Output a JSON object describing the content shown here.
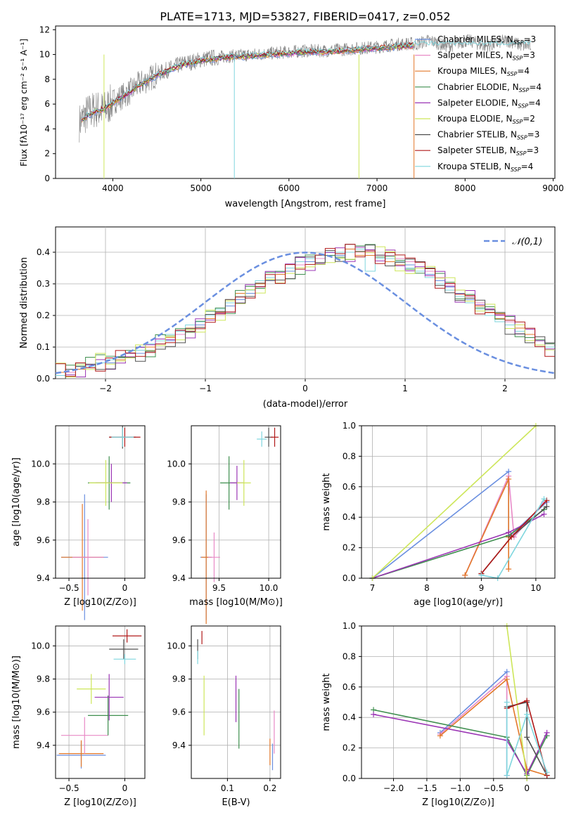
{
  "figure": {
    "title": "PLATE=1713, MJD=53827, FIBERID=0417, z=0.052"
  },
  "legend_entries": [
    {
      "label": "Chabrier MILES, N",
      "sub": "SSP",
      "tail": "=3",
      "color": "#6a8fe0"
    },
    {
      "label": "Salpeter MILES, N",
      "sub": "SSP",
      "tail": "=3",
      "color": "#e88ac6"
    },
    {
      "label": "Kroupa MILES, N",
      "sub": "SSP",
      "tail": "=4",
      "color": "#e3782a"
    },
    {
      "label": "Chabrier ELODIE, N",
      "sub": "SSP",
      "tail": "=4",
      "color": "#3f8f4f"
    },
    {
      "label": "Salpeter ELODIE, N",
      "sub": "SSP",
      "tail": "=4",
      "color": "#9b35b5"
    },
    {
      "label": "Kroupa ELODIE, N",
      "sub": "SSP",
      "tail": "=2",
      "color": "#cde65a"
    },
    {
      "label": "Chabrier STELIB, N",
      "sub": "SSP",
      "tail": "=3",
      "color": "#505050"
    },
    {
      "label": "Salpeter STELIB, N",
      "sub": "SSP",
      "tail": "=3",
      "color": "#b01818"
    },
    {
      "label": "Kroupa STELIB, N",
      "sub": "SSP",
      "tail": "=4",
      "color": "#7fd6de"
    }
  ],
  "chart_data": [
    {
      "id": "spectrum",
      "type": "line",
      "title": "PLATE=1713, MJD=53827, FIBERID=0417, z=0.052",
      "xlabel": "wavelength [Angstrom, rest frame]",
      "ylabel": "Flux [fλ10⁻¹⁷ erg cm⁻² s⁻¹ A⁻¹]",
      "xlim": [
        3350,
        9020
      ],
      "ylim": [
        0,
        12.3
      ],
      "xticks": [
        4000,
        5000,
        6000,
        7000,
        8000,
        9000
      ],
      "yticks": [
        0,
        2,
        4,
        6,
        8,
        10,
        12
      ],
      "x": [
        3620,
        3700,
        3800,
        3900,
        4000,
        4100,
        4200,
        4300,
        4400,
        4500,
        4600,
        4700,
        4800,
        4900,
        5000,
        5200,
        5400,
        5600,
        5800,
        6000,
        6200,
        6400,
        6600,
        6800,
        7000,
        7200,
        7400
      ],
      "series": [
        {
          "name": "data",
          "values": [
            4.5,
            5.2,
            5.6,
            5.5,
            6.2,
            6.6,
            7.0,
            7.6,
            8.0,
            8.4,
            8.7,
            9.0,
            9.3,
            9.4,
            9.6,
            9.8,
            9.9,
            10.0,
            10.1,
            10.2,
            10.3,
            10.3,
            10.4,
            10.5,
            10.6,
            10.8,
            10.9
          ]
        },
        {
          "name": "model",
          "values": [
            4.6,
            5.0,
            5.4,
            5.6,
            6.1,
            6.5,
            7.0,
            7.5,
            7.9,
            8.3,
            8.6,
            8.9,
            9.2,
            9.3,
            9.5,
            9.7,
            9.8,
            9.9,
            10.0,
            10.1,
            10.2,
            10.2,
            10.3,
            10.4,
            10.5,
            10.6,
            10.7
          ]
        }
      ],
      "grid": false,
      "legend_position": "right"
    },
    {
      "id": "residuals",
      "type": "bar",
      "xlabel": "(data-model)/error",
      "ylabel": "Normed distribution",
      "xlim": [
        -2.5,
        2.5
      ],
      "ylim": [
        0,
        0.48
      ],
      "xticks": [
        -2,
        -1,
        0,
        1,
        2
      ],
      "yticks": [
        0.0,
        0.1,
        0.2,
        0.3,
        0.4
      ],
      "bin_edges_start": -2.5,
      "bin_width": 0.1,
      "series": [
        {
          "name": "Chabrier MILES",
          "values": [
            0.02,
            0.03,
            0.03,
            0.04,
            0.05,
            0.05,
            0.06,
            0.07,
            0.08,
            0.09,
            0.11,
            0.12,
            0.14,
            0.15,
            0.17,
            0.19,
            0.21,
            0.23,
            0.25,
            0.27,
            0.29,
            0.31,
            0.33,
            0.34,
            0.36,
            0.37,
            0.38,
            0.39,
            0.39,
            0.4,
            0.4,
            0.4,
            0.39,
            0.38,
            0.37,
            0.36,
            0.35,
            0.33,
            0.31,
            0.29,
            0.27,
            0.25,
            0.23,
            0.21,
            0.19,
            0.17,
            0.15,
            0.13,
            0.12,
            0.1
          ]
        },
        {
          "name": "Salpeter MILES",
          "values": [
            0.02,
            0.02,
            0.03,
            0.04,
            0.05,
            0.06,
            0.07,
            0.07,
            0.09,
            0.1,
            0.11,
            0.13,
            0.14,
            0.16,
            0.18,
            0.2,
            0.22,
            0.24,
            0.26,
            0.28,
            0.3,
            0.32,
            0.34,
            0.35,
            0.36,
            0.38,
            0.38,
            0.39,
            0.4,
            0.41,
            0.4,
            0.4,
            0.39,
            0.39,
            0.38,
            0.37,
            0.35,
            0.34,
            0.32,
            0.3,
            0.28,
            0.26,
            0.24,
            0.22,
            0.2,
            0.18,
            0.16,
            0.14,
            0.12,
            0.11
          ]
        },
        {
          "name": "Kroupa MILES",
          "values": [
            0.02,
            0.03,
            0.03,
            0.04,
            0.05,
            0.06,
            0.06,
            0.08,
            0.09,
            0.1,
            0.12,
            0.13,
            0.15,
            0.16,
            0.18,
            0.19,
            0.21,
            0.25,
            0.27,
            0.28,
            0.3,
            0.32,
            0.33,
            0.35,
            0.37,
            0.38,
            0.39,
            0.4,
            0.4,
            0.41,
            0.39,
            0.39,
            0.38,
            0.37,
            0.36,
            0.35,
            0.34,
            0.32,
            0.3,
            0.28,
            0.26,
            0.24,
            0.23,
            0.21,
            0.19,
            0.17,
            0.16,
            0.14,
            0.12,
            0.1
          ]
        },
        {
          "name": "Kroupa STELIB",
          "values": [
            0.01,
            0.03,
            0.04,
            0.04,
            0.05,
            0.06,
            0.07,
            0.08,
            0.09,
            0.11,
            0.12,
            0.14,
            0.15,
            0.17,
            0.18,
            0.2,
            0.22,
            0.24,
            0.26,
            0.28,
            0.31,
            0.32,
            0.34,
            0.35,
            0.37,
            0.38,
            0.39,
            0.4,
            0.4,
            0.4,
            0.41,
            0.34,
            0.38,
            0.38,
            0.37,
            0.35,
            0.34,
            0.32,
            0.3,
            0.28,
            0.26,
            0.24,
            0.22,
            0.2,
            0.18,
            0.17,
            0.15,
            0.13,
            0.12,
            0.1
          ]
        }
      ],
      "reference_curve": {
        "name": "𝒩(0,1)",
        "type": "gaussian",
        "mean": 0,
        "sigma": 1
      },
      "grid": true,
      "legend_position": "top-right"
    },
    {
      "id": "age_vs_Z",
      "type": "scatter",
      "xlabel": "Z [log10(Z/Z⊙)]",
      "ylabel": "age [log10(age/yr)]",
      "xlim": [
        -0.62,
        0.18
      ],
      "ylim": [
        9.4,
        10.2
      ],
      "xticks": [
        -0.5,
        0.0
      ],
      "yticks": [
        9.4,
        9.6,
        9.8,
        10.0
      ],
      "grid": true
    },
    {
      "id": "age_vs_mass",
      "type": "scatter",
      "xlabel": "mass [log10(M/M⊙)]",
      "xlim": [
        9.22,
        10.12
      ],
      "ylim": [
        9.4,
        10.2
      ],
      "xticks": [
        9.5,
        10.0
      ],
      "yticks": [
        9.4,
        9.6,
        9.8,
        10.0
      ],
      "grid": true
    },
    {
      "id": "massweight_vs_age",
      "type": "line",
      "xlabel": "age [log10(age/yr)]",
      "ylabel": "mass weight",
      "xlim": [
        6.8,
        10.35
      ],
      "ylim": [
        0,
        1.0
      ],
      "xticks": [
        7,
        8,
        9,
        10
      ],
      "yticks": [
        0.0,
        0.2,
        0.4,
        0.6,
        0.8,
        1.0
      ],
      "grid": true
    },
    {
      "id": "mass_vs_Z",
      "type": "scatter",
      "xlabel": "Z [log10(Z/Z⊙)]",
      "ylabel": "mass [log10(M/M⊙)]",
      "xlim": [
        -0.62,
        0.18
      ],
      "ylim": [
        9.2,
        10.12
      ],
      "xticks": [
        -0.5,
        0.0
      ],
      "yticks": [
        9.4,
        9.6,
        9.8,
        10.0
      ],
      "grid": true
    },
    {
      "id": "mass_vs_ebv",
      "type": "scatter",
      "xlabel": "E(B-V)",
      "xlim": [
        0.015,
        0.225
      ],
      "ylim": [
        9.2,
        10.12
      ],
      "xticks": [
        0.1,
        0.2
      ],
      "yticks": [
        9.4,
        9.6,
        9.8,
        10.0
      ],
      "grid": true
    },
    {
      "id": "massweight_vs_Z",
      "type": "line",
      "xlabel": "Z [log10(Z/Z⊙)]",
      "ylabel": "mass weight",
      "xlim": [
        -2.48,
        0.42
      ],
      "ylim": [
        0,
        1.0
      ],
      "xticks": [
        -2.0,
        -1.5,
        -1.0,
        -0.5,
        0.0
      ],
      "yticks": [
        0.0,
        0.2,
        0.4,
        0.6,
        0.8,
        1.0
      ],
      "grid": true
    }
  ],
  "points": {
    "age_vs_Z": [
      {
        "c": "#6a8fe0",
        "x": -0.36,
        "y": 9.51,
        "xe": 0.21,
        "ye": 0.33
      },
      {
        "c": "#e3782a",
        "x": -0.38,
        "y": 9.51,
        "xe": 0.19,
        "ye": 0.28
      },
      {
        "c": "#e88ac6",
        "x": -0.33,
        "y": 9.51,
        "xe": 0.14,
        "ye": 0.2
      },
      {
        "c": "#3f8f4f",
        "x": -0.14,
        "y": 9.9,
        "xe": 0.19,
        "ye": 0.14
      },
      {
        "c": "#9b35b5",
        "x": -0.12,
        "y": 9.9,
        "xe": 0.14,
        "ye": 0.1
      },
      {
        "c": "#cde65a",
        "x": -0.17,
        "y": 9.9,
        "xe": 0.15,
        "ye": 0.12
      },
      {
        "c": "#505050",
        "x": -0.02,
        "y": 10.14,
        "xe": 0.12,
        "ye": 0.06
      },
      {
        "c": "#b01818",
        "x": 0.0,
        "y": 10.14,
        "xe": 0.14,
        "ye": 0.05
      },
      {
        "c": "#7fd6de",
        "x": -0.02,
        "y": 10.14,
        "xe": 0.1,
        "ye": 0.05
      }
    ],
    "age_vs_mass": [
      {
        "c": "#6a8fe0",
        "x": 9.37,
        "y": 9.51,
        "xe": 0.06,
        "ye": 0.33
      },
      {
        "c": "#e3782a",
        "x": 9.37,
        "y": 9.51,
        "xe": 0.05,
        "ye": 0.35
      },
      {
        "c": "#e88ac6",
        "x": 9.45,
        "y": 9.51,
        "xe": 0.06,
        "ye": 0.13
      },
      {
        "c": "#3f8f4f",
        "x": 9.6,
        "y": 9.9,
        "xe": 0.09,
        "ye": 0.14
      },
      {
        "c": "#9b35b5",
        "x": 9.68,
        "y": 9.9,
        "xe": 0.07,
        "ye": 0.09
      },
      {
        "c": "#cde65a",
        "x": 9.75,
        "y": 9.9,
        "xe": 0.07,
        "ye": 0.12
      },
      {
        "c": "#505050",
        "x": 10.0,
        "y": 10.14,
        "xe": 0.04,
        "ye": 0.05
      },
      {
        "c": "#b01818",
        "x": 10.06,
        "y": 10.14,
        "xe": 0.04,
        "ye": 0.05
      },
      {
        "c": "#7fd6de",
        "x": 9.93,
        "y": 10.13,
        "xe": 0.05,
        "ye": 0.04
      }
    ],
    "mass_vs_Z": [
      {
        "c": "#6a8fe0",
        "x": -0.39,
        "y": 9.34,
        "xe": 0.22,
        "ye": 0.08
      },
      {
        "c": "#e3782a",
        "x": -0.39,
        "y": 9.35,
        "xe": 0.2,
        "ye": 0.08
      },
      {
        "c": "#e88ac6",
        "x": -0.36,
        "y": 9.46,
        "xe": 0.21,
        "ye": 0.11
      },
      {
        "c": "#3f8f4f",
        "x": -0.15,
        "y": 9.58,
        "xe": 0.18,
        "ye": 0.12
      },
      {
        "c": "#9b35b5",
        "x": -0.14,
        "y": 9.69,
        "xe": 0.13,
        "ye": 0.14
      },
      {
        "c": "#cde65a",
        "x": -0.3,
        "y": 9.74,
        "xe": 0.13,
        "ye": 0.09
      },
      {
        "c": "#505050",
        "x": -0.01,
        "y": 9.98,
        "xe": 0.13,
        "ye": 0.06
      },
      {
        "c": "#b01818",
        "x": 0.02,
        "y": 10.06,
        "xe": 0.13,
        "ye": 0.04
      },
      {
        "c": "#7fd6de",
        "x": 0.0,
        "y": 9.92,
        "xe": 0.1,
        "ye": 0.03
      }
    ],
    "mass_vs_ebv": [
      {
        "c": "#6a8fe0",
        "x": 0.206,
        "y": 9.33,
        "ye": 0.08
      },
      {
        "c": "#e3782a",
        "x": 0.2,
        "y": 9.36,
        "ye": 0.08
      },
      {
        "c": "#e88ac6",
        "x": 0.21,
        "y": 9.48,
        "ye": 0.13
      },
      {
        "c": "#3f8f4f",
        "x": 0.127,
        "y": 9.56,
        "ye": 0.18
      },
      {
        "c": "#9b35b5",
        "x": 0.12,
        "y": 9.68,
        "ye": 0.14
      },
      {
        "c": "#cde65a",
        "x": 0.045,
        "y": 9.64,
        "ye": 0.18
      },
      {
        "c": "#505050",
        "x": 0.03,
        "y": 9.98,
        "ye": 0.06
      },
      {
        "c": "#b01818",
        "x": 0.04,
        "y": 10.05,
        "ye": 0.04
      },
      {
        "c": "#7fd6de",
        "x": 0.03,
        "y": 9.93,
        "ye": 0.04
      }
    ],
    "massweight_vs_age": [
      {
        "c": "#6a8fe0",
        "pts": [
          [
            7.0,
            0.0
          ],
          [
            9.5,
            0.7
          ],
          [
            9.5,
            0.27
          ],
          [
            10.2,
            0.5
          ]
        ]
      },
      {
        "c": "#e88ac6",
        "pts": [
          [
            8.7,
            0.02
          ],
          [
            9.5,
            0.67
          ],
          [
            9.6,
            0.27
          ],
          [
            10.15,
            0.5
          ]
        ]
      },
      {
        "c": "#e3782a",
        "pts": [
          [
            8.7,
            0.02
          ],
          [
            9.5,
            0.65
          ],
          [
            9.5,
            0.06
          ],
          [
            9.5,
            0.27
          ]
        ]
      },
      {
        "c": "#3f8f4f",
        "pts": [
          [
            7.0,
            0.0
          ],
          [
            9.5,
            0.28
          ],
          [
            10.15,
            0.45
          ]
        ]
      },
      {
        "c": "#9b35b5",
        "pts": [
          [
            7.0,
            0.0
          ],
          [
            9.5,
            0.3
          ],
          [
            10.15,
            0.42
          ]
        ]
      },
      {
        "c": "#cde65a",
        "pts": [
          [
            7.0,
            0.0
          ],
          [
            10.0,
            1.0
          ]
        ]
      },
      {
        "c": "#505050",
        "pts": [
          [
            9.0,
            0.03
          ],
          [
            9.55,
            0.27
          ],
          [
            10.2,
            0.47
          ]
        ]
      },
      {
        "c": "#b01818",
        "pts": [
          [
            9.0,
            0.03
          ],
          [
            9.55,
            0.27
          ],
          [
            10.2,
            0.51
          ]
        ]
      },
      {
        "c": "#7fd6de",
        "pts": [
          [
            9.0,
            0.02
          ],
          [
            9.3,
            0.0
          ],
          [
            10.15,
            0.52
          ]
        ]
      }
    ],
    "massweight_vs_Z": [
      {
        "c": "#6a8fe0",
        "pts": [
          [
            -0.3,
            0.02
          ],
          [
            -0.3,
            0.7
          ],
          [
            -1.3,
            0.3
          ]
        ]
      },
      {
        "c": "#e88ac6",
        "pts": [
          [
            -0.3,
            0.02
          ],
          [
            -0.3,
            0.67
          ],
          [
            -1.3,
            0.29
          ]
        ]
      },
      {
        "c": "#e3782a",
        "pts": [
          [
            -1.3,
            0.28
          ],
          [
            -0.3,
            0.65
          ],
          [
            0.0,
            0.06
          ],
          [
            0.3,
            0.02
          ]
        ]
      },
      {
        "c": "#3f8f4f",
        "pts": [
          [
            -2.3,
            0.45
          ],
          [
            -0.3,
            0.27
          ],
          [
            0.0,
            0.02
          ],
          [
            0.3,
            0.28
          ]
        ]
      },
      {
        "c": "#9b35b5",
        "pts": [
          [
            -2.3,
            0.42
          ],
          [
            -0.3,
            0.25
          ],
          [
            0.0,
            0.03
          ],
          [
            0.3,
            0.3
          ]
        ]
      },
      {
        "c": "#cde65a",
        "pts": [
          [
            -0.3,
            1.0
          ],
          [
            0.0,
            0.0
          ]
        ]
      },
      {
        "c": "#505050",
        "pts": [
          [
            -0.3,
            0.47
          ],
          [
            0.0,
            0.5
          ],
          [
            0.0,
            0.27
          ],
          [
            0.3,
            0.02
          ]
        ]
      },
      {
        "c": "#b01818",
        "pts": [
          [
            -0.3,
            0.46
          ],
          [
            0.0,
            0.51
          ],
          [
            0.3,
            0.02
          ]
        ]
      },
      {
        "c": "#7fd6de",
        "pts": [
          [
            -0.3,
            0.5
          ],
          [
            -0.3,
            0.02
          ],
          [
            0.0,
            0.42
          ],
          [
            0.3,
            0.04
          ]
        ]
      }
    ]
  }
}
